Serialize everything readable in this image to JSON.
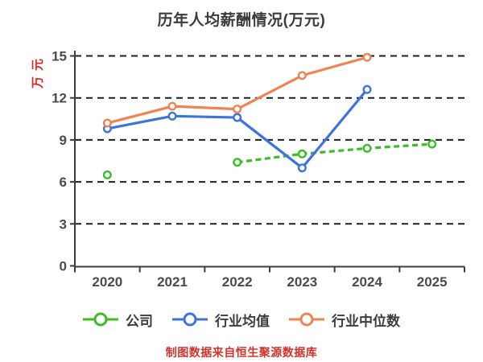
{
  "source_note": "制图数据来自恒生聚源数据库",
  "palette": {
    "grid": "#1f1f1f",
    "axis": "#3d3d3d",
    "tick_label": "#4b4b4b",
    "title": "#3c3c3c",
    "y_axis_label": "#e4251f",
    "source_note": "#d0342c",
    "marker_fill": "#ffffff"
  },
  "chart_data": {
    "type": "line",
    "title": "历年人均薪酬情况(万元)",
    "ylabel": "万元",
    "xlabel": "",
    "categories": [
      "2020",
      "2021",
      "2022",
      "2023",
      "2024",
      "2025"
    ],
    "series": [
      {
        "key": "company",
        "name": "公司",
        "color": "#3bbd24",
        "style": "dashed",
        "values": [
          6.5,
          null,
          7.4,
          8.0,
          8.4,
          8.7
        ]
      },
      {
        "key": "industry-average",
        "name": "行业均值",
        "color": "#3e73de",
        "style": "solid",
        "values": [
          9.8,
          10.7,
          10.6,
          7.0,
          12.6,
          null
        ]
      },
      {
        "key": "industry-median",
        "name": "行业中位数",
        "color": "#f08351",
        "style": "solid",
        "values": [
          10.2,
          11.4,
          11.2,
          13.6,
          14.9,
          null
        ]
      }
    ],
    "ylim": [
      0,
      15
    ],
    "yticks": [
      0,
      3,
      6,
      9,
      12,
      15
    ],
    "grid": "horizontal-dashed",
    "legend_position": "bottom",
    "marker": "circle-white-fill"
  }
}
